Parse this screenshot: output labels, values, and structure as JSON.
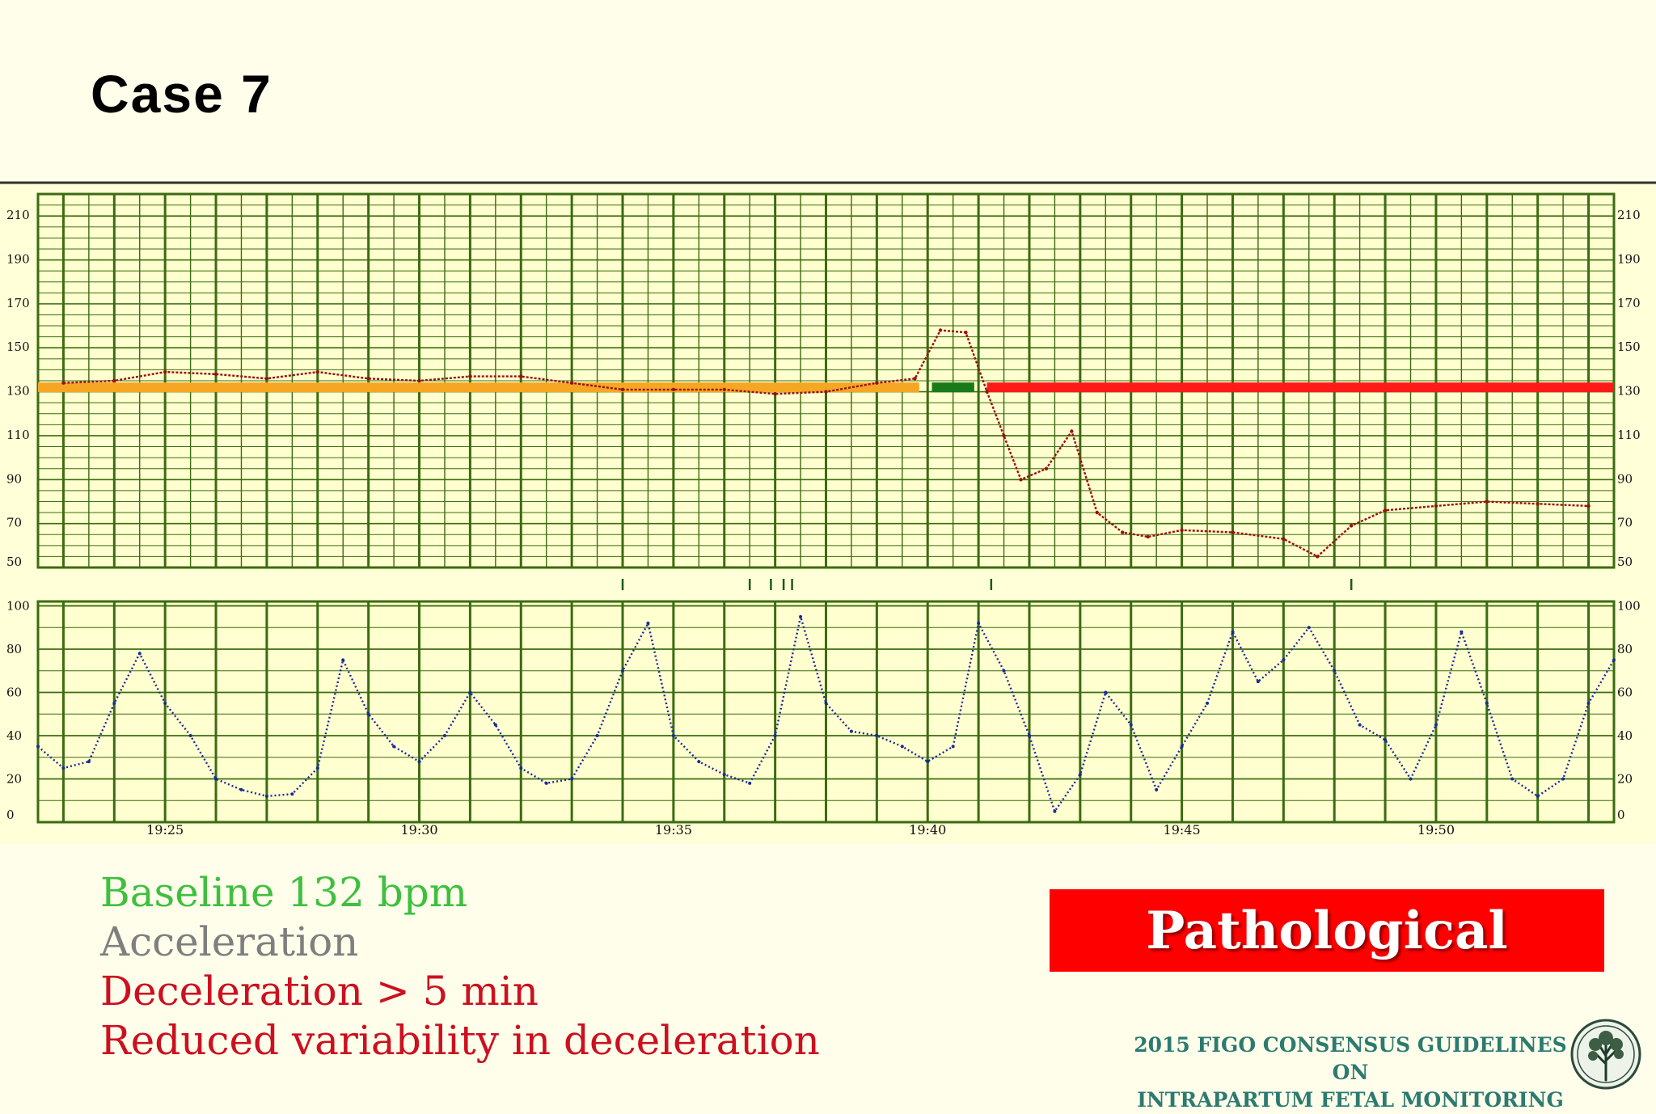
{
  "slide": {
    "title": "Case 7",
    "notes": [
      {
        "text": "Baseline 132 bpm",
        "color": "#3fbf3f"
      },
      {
        "text": "Acceleration",
        "color": "#7f7f7f"
      },
      {
        "text": "Deceleration > 5 min",
        "color": "#cc1020"
      },
      {
        "text": "Reduced variability in deceleration",
        "color": "#cc1020"
      }
    ],
    "classification": "Pathological",
    "classification_color": "#ff0000",
    "guidelines_line1": "2015 FIGO CONSENSUS GUIDELINES ON",
    "guidelines_line2": "INTRAPARTUM FETAL MONITORING",
    "guidelines_color": "#2c7a70",
    "logo_icon": "figo-tree-logo-icon"
  },
  "chart_data": [
    {
      "type": "line",
      "name": "fetal-heart-rate",
      "y_ticks": [
        50,
        70,
        90,
        110,
        130,
        150,
        170,
        190,
        210
      ],
      "ylim": [
        50,
        220
      ],
      "xlim_minutes": [
        "19:22:30",
        "19:53:30"
      ],
      "grid": true,
      "line_color": "#9b1010",
      "x": [
        "19:23:00",
        "19:24:00",
        "19:25:00",
        "19:26:00",
        "19:27:00",
        "19:28:00",
        "19:29:00",
        "19:30:00",
        "19:31:00",
        "19:32:00",
        "19:33:00",
        "19:34:00",
        "19:35:00",
        "19:36:00",
        "19:37:00",
        "19:38:00",
        "19:39:00",
        "19:39:45",
        "19:40:15",
        "19:40:45",
        "19:41:10",
        "19:41:30",
        "19:41:50",
        "19:42:20",
        "19:42:50",
        "19:43:20",
        "19:43:50",
        "19:44:20",
        "19:45:00",
        "19:46:00",
        "19:47:00",
        "19:47:40",
        "19:48:20",
        "19:49:00",
        "19:50:00",
        "19:51:00",
        "19:52:00",
        "19:53:00"
      ],
      "values": [
        134,
        135,
        139,
        138,
        136,
        139,
        136,
        135,
        137,
        137,
        134,
        131,
        131,
        131,
        129,
        130,
        134,
        136,
        158,
        157,
        130,
        110,
        90,
        95,
        112,
        75,
        66,
        64,
        67,
        66,
        63,
        55,
        69,
        76,
        78,
        80,
        79,
        78
      ],
      "baseline_segments": [
        {
          "start": "19:22:30",
          "end": "19:39:50",
          "value": 132,
          "color": "#f5a623"
        },
        {
          "start": "19:40:05",
          "end": "19:40:55",
          "value": 132,
          "color": "#1a7a1a"
        },
        {
          "start": "19:41:10",
          "end": "19:53:30",
          "value": 132,
          "color": "#ff1a1a"
        }
      ],
      "event_marks": [
        "19:34:00",
        "19:36:30",
        "19:36:55",
        "19:37:10",
        "19:37:20",
        "19:41:15",
        "19:48:20"
      ]
    },
    {
      "type": "line",
      "name": "uterine-contractions",
      "y_ticks": [
        0,
        20,
        40,
        60,
        80,
        100
      ],
      "ylim": [
        0,
        100
      ],
      "x_ticks": [
        "19:25",
        "19:30",
        "19:35",
        "19:40",
        "19:45",
        "19:50"
      ],
      "grid": true,
      "line_color": "#1a2a99",
      "x": [
        "19:22:30",
        "19:23:00",
        "19:23:30",
        "19:24:00",
        "19:24:30",
        "19:25:00",
        "19:25:30",
        "19:26:00",
        "19:26:30",
        "19:27:00",
        "19:27:30",
        "19:28:00",
        "19:28:30",
        "19:29:00",
        "19:29:30",
        "19:30:00",
        "19:30:30",
        "19:31:00",
        "19:31:30",
        "19:32:00",
        "19:32:30",
        "19:33:00",
        "19:33:30",
        "19:34:00",
        "19:34:30",
        "19:35:00",
        "19:35:30",
        "19:36:00",
        "19:36:30",
        "19:37:00",
        "19:37:30",
        "19:38:00",
        "19:38:30",
        "19:39:00",
        "19:39:30",
        "19:40:00",
        "19:40:30",
        "19:41:00",
        "19:41:30",
        "19:42:00",
        "19:42:30",
        "19:43:00",
        "19:43:30",
        "19:44:00",
        "19:44:30",
        "19:45:00",
        "19:45:30",
        "19:46:00",
        "19:46:30",
        "19:47:00",
        "19:47:30",
        "19:48:00",
        "19:48:30",
        "19:49:00",
        "19:49:30",
        "19:50:00",
        "19:50:30",
        "19:51:00",
        "19:51:30",
        "19:52:00",
        "19:52:30",
        "19:53:00",
        "19:53:30"
      ],
      "values": [
        35,
        25,
        28,
        55,
        78,
        55,
        40,
        20,
        15,
        12,
        13,
        25,
        75,
        50,
        35,
        28,
        40,
        60,
        45,
        25,
        18,
        20,
        40,
        70,
        92,
        40,
        28,
        22,
        18,
        40,
        95,
        55,
        42,
        40,
        35,
        28,
        35,
        92,
        70,
        40,
        5,
        22,
        60,
        45,
        15,
        35,
        55,
        88,
        65,
        75,
        90,
        70,
        45,
        38,
        20,
        45,
        88,
        55,
        20,
        12,
        20,
        55,
        75
      ]
    }
  ]
}
